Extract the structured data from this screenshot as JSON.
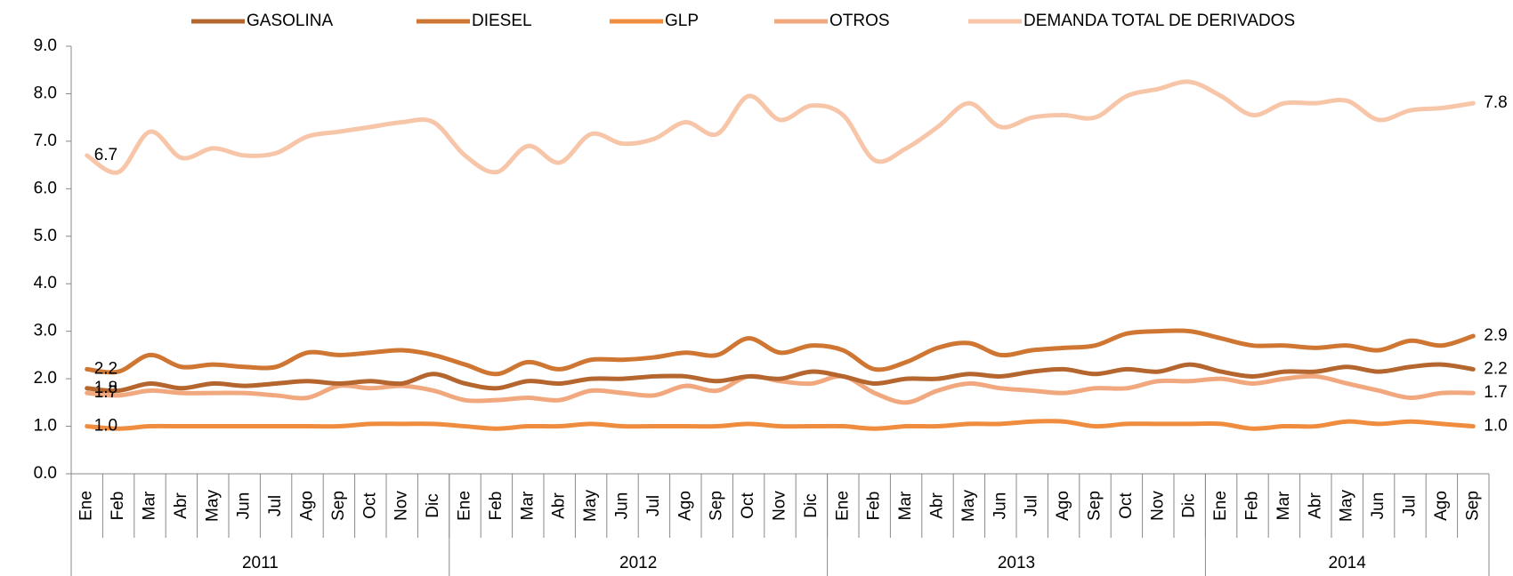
{
  "chart_data": {
    "type": "line",
    "categories": [
      "Ene",
      "Feb",
      "Mar",
      "Abr",
      "May",
      "Jun",
      "Jul",
      "Ago",
      "Sep",
      "Oct",
      "Nov",
      "Dic",
      "Ene",
      "Feb",
      "Mar",
      "Abr",
      "May",
      "Jun",
      "Jul",
      "Ago",
      "Sep",
      "Oct",
      "Nov",
      "Dic",
      "Ene",
      "Feb",
      "Mar",
      "Abr",
      "May",
      "Jun",
      "Jul",
      "Ago",
      "Sep",
      "Oct",
      "Nov",
      "Dic",
      "Ene",
      "Feb",
      "Mar",
      "Abr",
      "May",
      "Jun",
      "Jul",
      "Ago",
      "Sep"
    ],
    "groups": [
      "2011",
      "2012",
      "2013",
      "2014"
    ],
    "ylim": [
      0,
      9
    ],
    "yticks": [
      {
        "value": 0,
        "label": "0.0"
      },
      {
        "value": 1,
        "label": "1.0"
      },
      {
        "value": 2,
        "label": "2.0"
      },
      {
        "value": 3,
        "label": "3.0"
      },
      {
        "value": 4,
        "label": "4.0"
      },
      {
        "value": 5,
        "label": "5.0"
      },
      {
        "value": 6,
        "label": "6.0"
      },
      {
        "value": 7,
        "label": "7.0"
      },
      {
        "value": 8,
        "label": "8.0"
      },
      {
        "value": 9,
        "label": "9.0"
      }
    ],
    "legend": "top",
    "series": [
      {
        "name": "GASOLINA",
        "color": "#b5652e",
        "values": [
          1.8,
          1.75,
          1.9,
          1.8,
          1.9,
          1.85,
          1.9,
          1.95,
          1.9,
          1.95,
          1.9,
          2.1,
          1.9,
          1.8,
          1.95,
          1.9,
          2.0,
          2.0,
          2.05,
          2.05,
          1.95,
          2.05,
          2.0,
          2.15,
          2.05,
          1.9,
          2.0,
          2.0,
          2.1,
          2.05,
          2.15,
          2.2,
          2.1,
          2.2,
          2.15,
          2.3,
          2.15,
          2.05,
          2.15,
          2.15,
          2.25,
          2.15,
          2.25,
          2.3,
          2.2
        ],
        "value_labels": [
          "1.8",
          null,
          null,
          null,
          null,
          null,
          null,
          null,
          null,
          null,
          null,
          null,
          null,
          null,
          null,
          null,
          null,
          null,
          null,
          null,
          null,
          null,
          null,
          null,
          null,
          null,
          null,
          null,
          null,
          null,
          null,
          null,
          null,
          null,
          null,
          null,
          null,
          null,
          null,
          null,
          null,
          null,
          null,
          null,
          "2.2"
        ]
      },
      {
        "name": "DIESEL",
        "color": "#cf7632",
        "values": [
          2.2,
          2.15,
          2.5,
          2.25,
          2.3,
          2.25,
          2.25,
          2.55,
          2.5,
          2.55,
          2.6,
          2.5,
          2.3,
          2.1,
          2.35,
          2.2,
          2.4,
          2.4,
          2.45,
          2.55,
          2.5,
          2.85,
          2.55,
          2.7,
          2.6,
          2.2,
          2.35,
          2.65,
          2.75,
          2.5,
          2.6,
          2.65,
          2.7,
          2.95,
          3.0,
          3.0,
          2.85,
          2.7,
          2.7,
          2.65,
          2.7,
          2.6,
          2.8,
          2.7,
          2.9
        ],
        "value_labels": [
          "2.2",
          null,
          null,
          null,
          null,
          null,
          null,
          null,
          null,
          null,
          null,
          null,
          null,
          null,
          null,
          null,
          null,
          null,
          null,
          null,
          null,
          null,
          null,
          null,
          null,
          null,
          null,
          null,
          null,
          null,
          null,
          null,
          null,
          null,
          null,
          null,
          null,
          null,
          null,
          null,
          null,
          null,
          null,
          null,
          "2.9"
        ]
      },
      {
        "name": "GLP",
        "color": "#ef8c3e",
        "values": [
          1.0,
          0.95,
          1.0,
          1.0,
          1.0,
          1.0,
          1.0,
          1.0,
          1.0,
          1.05,
          1.05,
          1.05,
          1.0,
          0.95,
          1.0,
          1.0,
          1.05,
          1.0,
          1.0,
          1.0,
          1.0,
          1.05,
          1.0,
          1.0,
          1.0,
          0.95,
          1.0,
          1.0,
          1.05,
          1.05,
          1.1,
          1.1,
          1.0,
          1.05,
          1.05,
          1.05,
          1.05,
          0.95,
          1.0,
          1.0,
          1.1,
          1.05,
          1.1,
          1.05,
          1.0
        ],
        "value_labels": [
          "1.0",
          null,
          null,
          null,
          null,
          null,
          null,
          null,
          null,
          null,
          null,
          null,
          null,
          null,
          null,
          null,
          null,
          null,
          null,
          null,
          null,
          null,
          null,
          null,
          null,
          null,
          null,
          null,
          null,
          null,
          null,
          null,
          null,
          null,
          null,
          null,
          null,
          null,
          null,
          null,
          null,
          null,
          null,
          null,
          "1.0"
        ]
      },
      {
        "name": "OTROS",
        "color": "#f2a87e",
        "values": [
          1.7,
          1.65,
          1.75,
          1.7,
          1.7,
          1.7,
          1.65,
          1.6,
          1.85,
          1.8,
          1.85,
          1.75,
          1.55,
          1.55,
          1.6,
          1.55,
          1.75,
          1.7,
          1.65,
          1.85,
          1.75,
          2.05,
          1.95,
          1.9,
          2.05,
          1.7,
          1.5,
          1.75,
          1.9,
          1.8,
          1.75,
          1.7,
          1.8,
          1.8,
          1.95,
          1.95,
          2.0,
          1.9,
          2.0,
          2.05,
          1.9,
          1.75,
          1.6,
          1.7,
          1.7
        ],
        "value_labels": [
          "1.7",
          null,
          null,
          null,
          null,
          null,
          null,
          null,
          null,
          null,
          null,
          null,
          null,
          null,
          null,
          null,
          null,
          null,
          null,
          null,
          null,
          null,
          null,
          null,
          null,
          null,
          null,
          null,
          null,
          null,
          null,
          null,
          null,
          null,
          null,
          null,
          null,
          null,
          null,
          null,
          null,
          null,
          null,
          null,
          "1.7"
        ]
      },
      {
        "name": "DEMANDA TOTAL DE DERIVADOS",
        "color": "#f7c6a9",
        "values": [
          6.7,
          6.35,
          7.2,
          6.65,
          6.85,
          6.7,
          6.75,
          7.1,
          7.2,
          7.3,
          7.4,
          7.4,
          6.7,
          6.35,
          6.9,
          6.55,
          7.15,
          6.95,
          7.05,
          7.4,
          7.15,
          7.95,
          7.45,
          7.75,
          7.55,
          6.6,
          6.85,
          7.3,
          7.8,
          7.3,
          7.5,
          7.55,
          7.5,
          7.95,
          8.1,
          8.25,
          7.95,
          7.55,
          7.8,
          7.8,
          7.85,
          7.45,
          7.65,
          7.7,
          7.8
        ],
        "value_labels": [
          "6.7",
          null,
          null,
          null,
          null,
          null,
          null,
          null,
          null,
          null,
          null,
          null,
          null,
          null,
          null,
          null,
          null,
          null,
          null,
          null,
          null,
          null,
          null,
          null,
          null,
          null,
          null,
          null,
          null,
          null,
          null,
          null,
          null,
          null,
          null,
          null,
          null,
          null,
          null,
          null,
          null,
          null,
          null,
          null,
          "7.8"
        ]
      }
    ]
  }
}
